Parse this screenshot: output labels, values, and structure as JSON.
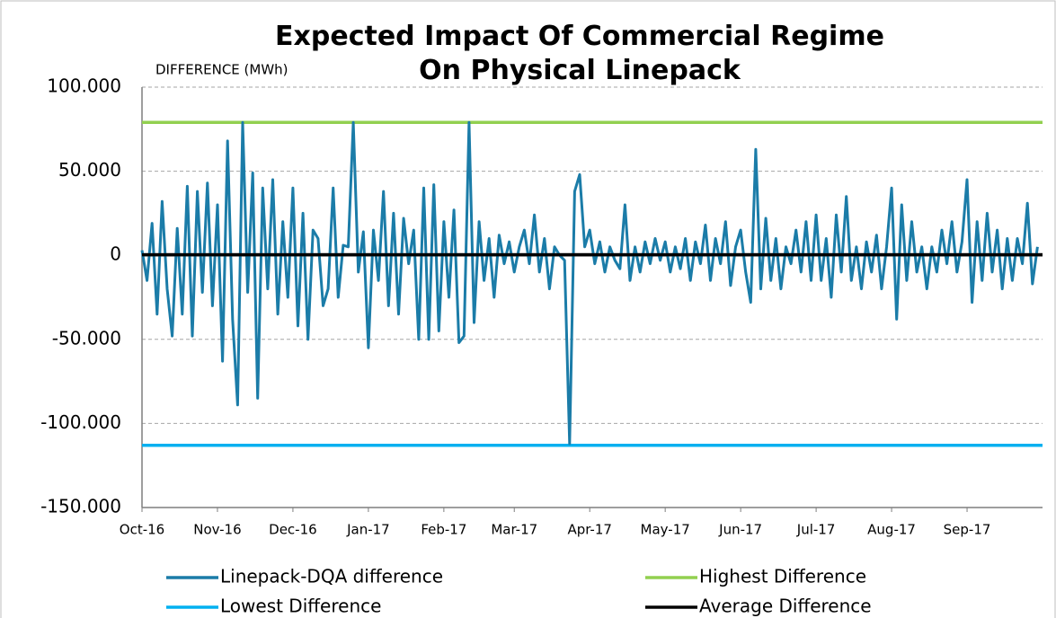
{
  "chart_data": {
    "type": "line",
    "title": "Expected Impact Of Commercial Regime On Physical Linepack",
    "y_label": "DIFFERENCE (MWh)",
    "categories": [
      "Oct-16",
      null,
      null,
      null,
      null,
      null,
      null,
      null,
      null,
      null,
      null,
      null,
      null,
      null,
      null,
      "Nov-16",
      null,
      null,
      null,
      null,
      null,
      null,
      null,
      null,
      null,
      null,
      null,
      null,
      null,
      null,
      "Dec-16",
      null,
      null,
      null,
      null,
      null,
      null,
      null,
      null,
      null,
      null,
      null,
      null,
      null,
      null,
      "Jan-17",
      null,
      null,
      null,
      null,
      null,
      null,
      null,
      null,
      null,
      null,
      null,
      null,
      null,
      null,
      "Feb-17",
      null,
      null,
      null,
      null,
      null,
      null,
      null,
      null,
      null,
      null,
      null,
      null,
      null,
      "Mar-17",
      null,
      null,
      null,
      null,
      null,
      null,
      null,
      null,
      null,
      null,
      null,
      null,
      null,
      null,
      "Apr-17",
      null,
      null,
      null,
      null,
      null,
      null,
      null,
      null,
      null,
      null,
      null,
      null,
      null,
      null,
      "May-17",
      null,
      null,
      null,
      null,
      null,
      null,
      null,
      null,
      null,
      null,
      null,
      null,
      null,
      null,
      "Jun-17",
      null,
      null,
      null,
      null,
      null,
      null,
      null,
      null,
      null,
      null,
      null,
      null,
      null,
      null,
      "Jul-17",
      null,
      null,
      null,
      null,
      null,
      null,
      null,
      null,
      null,
      null,
      null,
      null,
      null,
      null,
      "Aug-17",
      null,
      null,
      null,
      null,
      null,
      null,
      null,
      null,
      null,
      null,
      null,
      null,
      null,
      null,
      "Sep-17",
      null,
      null,
      null,
      null,
      null,
      null,
      null,
      null,
      null,
      null,
      null,
      null,
      null,
      null
    ],
    "series": [
      {
        "name": "Linepack-DQA difference",
        "color": "#1b7ca8",
        "values": [
          3,
          -15,
          19,
          -35,
          32,
          -20,
          -48,
          16,
          -35,
          41,
          -48,
          38,
          -22,
          43,
          -30,
          30,
          -63,
          68,
          -38,
          -89,
          79,
          -22,
          49,
          -85,
          40,
          -20,
          45,
          -35,
          20,
          -25,
          40,
          -42,
          25,
          -50,
          15,
          10,
          -30,
          -20,
          40,
          -25,
          6,
          5,
          79,
          -10,
          14,
          -55,
          15,
          -15,
          38,
          -30,
          25,
          -35,
          22,
          -5,
          15,
          -50,
          40,
          -50,
          42,
          -45,
          20,
          -25,
          27,
          -52,
          -48,
          79,
          -40,
          20,
          -15,
          10,
          -25,
          12,
          -5,
          8,
          -10,
          5,
          15,
          -5,
          24,
          -10,
          10,
          -20,
          5,
          0,
          -3,
          -112,
          38,
          48,
          5,
          15,
          -5,
          8,
          -10,
          5,
          -3,
          -8,
          30,
          -15,
          5,
          -10,
          8,
          -5,
          10,
          -3,
          8,
          -10,
          5,
          -8,
          10,
          -15,
          8,
          -5,
          18,
          -15,
          10,
          -5,
          20,
          -18,
          5,
          15,
          -10,
          -28,
          63,
          -20,
          22,
          -15,
          10,
          -20,
          5,
          -5,
          15,
          -10,
          20,
          -15,
          24,
          -15,
          10,
          -25,
          24,
          -10,
          35,
          -15,
          5,
          -20,
          8,
          -10,
          12,
          -20,
          5,
          40,
          -38,
          30,
          -15,
          20,
          -10,
          5,
          -20,
          5,
          -10,
          15,
          -5,
          20,
          -10,
          8,
          45,
          -28,
          20,
          -15,
          25,
          -10,
          15,
          -20,
          10,
          -15,
          10,
          -5,
          31,
          -17,
          5
        ]
      }
    ],
    "reference_lines": [
      {
        "name": "Highest Difference",
        "color": "#92d050",
        "value": 79
      },
      {
        "name": "Lowest Difference",
        "color": "#00b0f0",
        "value": -113
      },
      {
        "name": "Average Difference",
        "color": "#000000",
        "value": 0.3
      }
    ],
    "ylim": [
      -150,
      100
    ],
    "yticks": [
      {
        "value": -150,
        "label": "-150.000"
      },
      {
        "value": -100,
        "label": "-100.000"
      },
      {
        "value": -50,
        "label": "-50.000"
      },
      0,
      {
        "value": 50,
        "label": "50.000"
      },
      {
        "value": 100,
        "label": "100.000"
      }
    ],
    "grid": true
  }
}
